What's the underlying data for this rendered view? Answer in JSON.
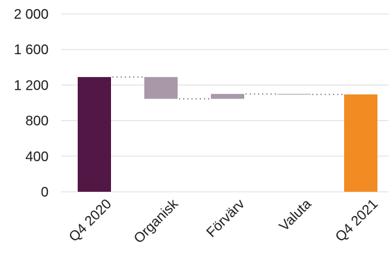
{
  "chart_data": {
    "type": "bar",
    "subtype": "waterfall",
    "title": "",
    "xlabel": "",
    "ylabel": "",
    "ylim": [
      0,
      2000
    ],
    "grid": true,
    "legend": "none",
    "yticks": [
      {
        "value": 0,
        "label": "0"
      },
      {
        "value": 400,
        "label": "400"
      },
      {
        "value": 800,
        "label": "800"
      },
      {
        "value": 1200,
        "label": "1 200"
      },
      {
        "value": 1600,
        "label": "1 600"
      },
      {
        "value": 2000,
        "label": "2 000"
      }
    ],
    "categories": [
      "Q4 2020",
      "Organisk",
      "Förvärv",
      "Valuta",
      "Q4 2021"
    ],
    "bars": [
      {
        "category": "Q4 2020",
        "kind": "total",
        "start": 0,
        "end": 1290,
        "color": "#531746"
      },
      {
        "category": "Organisk",
        "kind": "delta",
        "start": 1290,
        "end": 1045,
        "color": "#a898a8"
      },
      {
        "category": "Förvärv",
        "kind": "delta",
        "start": 1045,
        "end": 1100,
        "color": "#a898a8"
      },
      {
        "category": "Valuta",
        "kind": "delta",
        "start": 1100,
        "end": 1095,
        "color": "#a898a8"
      },
      {
        "category": "Q4 2021",
        "kind": "total",
        "start": 0,
        "end": 1095,
        "color": "#f28c22"
      }
    ]
  },
  "colors": {
    "total_start": "#531746",
    "delta": "#a898a8",
    "total_end": "#f28c22",
    "grid": "#d9d9d9",
    "connector": "#595959",
    "text": "#1a1a1a"
  }
}
